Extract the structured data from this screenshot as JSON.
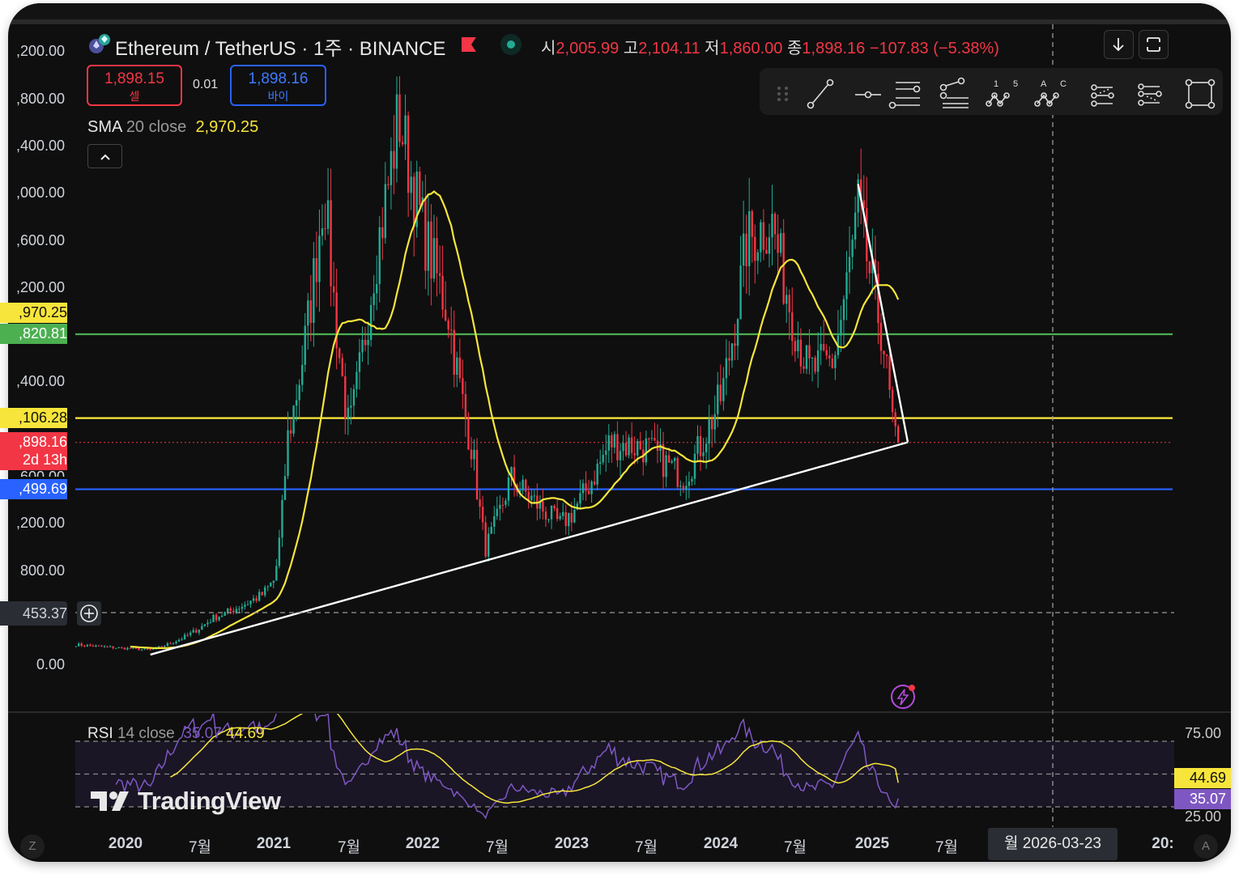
{
  "header": {
    "symbol_title": "Ethereum / TetherUS · 1주 · BINANCE",
    "ohlc": [
      {
        "label": "시",
        "value": "2,005.99"
      },
      {
        "label": "고",
        "value": "2,104.11"
      },
      {
        "label": "저",
        "value": "1,860.00"
      },
      {
        "label": "종",
        "value": "1,898.16"
      }
    ],
    "change": "−107.83 (−5.38%)",
    "sell_price": "1,898.15",
    "sell_label": "셀",
    "spread": "0.01",
    "buy_price": "1,898.16",
    "buy_label": "바이",
    "sma_name": "SMA",
    "sma_params": "20 close",
    "sma_value": "2,970.25"
  },
  "colors": {
    "up": "#22ab94",
    "down": "#f23645",
    "sma": "#f7e53b",
    "rsi": "#7e57c2",
    "rsi_ma": "#f7e53b",
    "level_green": "#4caf50",
    "level_yellow": "#ffeb3b",
    "level_blue": "#2962ff",
    "trendline": "#ffffff"
  },
  "price_axis": {
    "labels": [
      ",200.00",
      ",800.00",
      ",400.00",
      ",000.00",
      ",600.00",
      ",200.00",
      ",400.00",
      ",200.00",
      "800.00",
      "0.00"
    ],
    "tags": {
      "sma": ",970.25",
      "green": ",820.81",
      "yellow": ",106.28",
      "last": ",898.16",
      "countdown": "2d 13h",
      "blue": ",499.69",
      "crosshair": "453.37",
      "partial_under_last": "600.00"
    }
  },
  "time_axis": {
    "labels": [
      "2020",
      "7월",
      "2021",
      "7월",
      "2022",
      "7월",
      "2023",
      "7월",
      "2024",
      "7월",
      "2025",
      "7월",
      "20:"
    ],
    "crosshair_date": "월 2026-03-23",
    "left_badge": "Z",
    "right_badge": "A"
  },
  "rsi": {
    "name": "RSI",
    "params": "14 close",
    "value": "35.07",
    "ma_value": "44.69",
    "axis_labels": [
      "75.00",
      "25.00"
    ],
    "levels": [
      70,
      50,
      30
    ]
  },
  "watermark": "TradingView",
  "toolbar": {
    "tools": [
      "drag-handle",
      "trend-line",
      "horizontal-ray",
      "pitchfork",
      "fib-retracement",
      "xabcd-pattern",
      "abcd-pattern",
      "parallel-channel",
      "regression-trend",
      "rectangle"
    ],
    "xabcd_marks": [
      "1",
      "5"
    ],
    "abcd_marks": [
      "A",
      "C"
    ]
  },
  "chart_data": {
    "type": "candlestick",
    "interval": "1W",
    "title": "Ethereum / TetherUS · 1주 · BINANCE",
    "ylim": [
      0,
      5200
    ],
    "xlim": [
      "2019-09",
      "2026-06"
    ],
    "price_path": [
      [
        "2019-09",
        175
      ],
      [
        "2020-03",
        130
      ],
      [
        "2020-08",
        400
      ],
      [
        "2020-12",
        600
      ],
      [
        "2021-01",
        730
      ],
      [
        "2021-02",
        1900
      ],
      [
        "2021-05",
        4100
      ],
      [
        "2021-07",
        2000
      ],
      [
        "2021-09",
        3400
      ],
      [
        "2021-11",
        4700
      ],
      [
        "2022-01",
        3700
      ],
      [
        "2022-03",
        3000
      ],
      [
        "2022-05",
        1800
      ],
      [
        "2022-06",
        1000
      ],
      [
        "2022-08",
        1600
      ],
      [
        "2022-12",
        1200
      ],
      [
        "2023-01",
        1300
      ],
      [
        "2023-04",
        1900
      ],
      [
        "2023-07",
        1850
      ],
      [
        "2023-10",
        1600
      ],
      [
        "2024-01",
        2300
      ],
      [
        "2024-03",
        3600
      ],
      [
        "2024-05",
        3800
      ],
      [
        "2024-08",
        2500
      ],
      [
        "2024-10",
        2600
      ],
      [
        "2024-12",
        3900
      ],
      [
        "2025-02",
        2800
      ],
      [
        "2025-03",
        1898.16
      ]
    ],
    "horizontal_levels": [
      2820.81,
      2106.28,
      1898.16,
      1499.69
    ],
    "crosshair_price": 453.37,
    "trendlines": [
      {
        "from": [
          "2020-03",
          90
        ],
        "to": [
          "2025-04",
          1900
        ]
      },
      {
        "from": [
          "2024-12",
          4100
        ],
        "to": [
          "2025-04",
          1900
        ]
      }
    ],
    "sma_period": 20,
    "rsi_period": 14,
    "rsi_last": 35.07,
    "rsi_ma_last": 44.69,
    "rsi_ylim": [
      25,
      75
    ]
  }
}
